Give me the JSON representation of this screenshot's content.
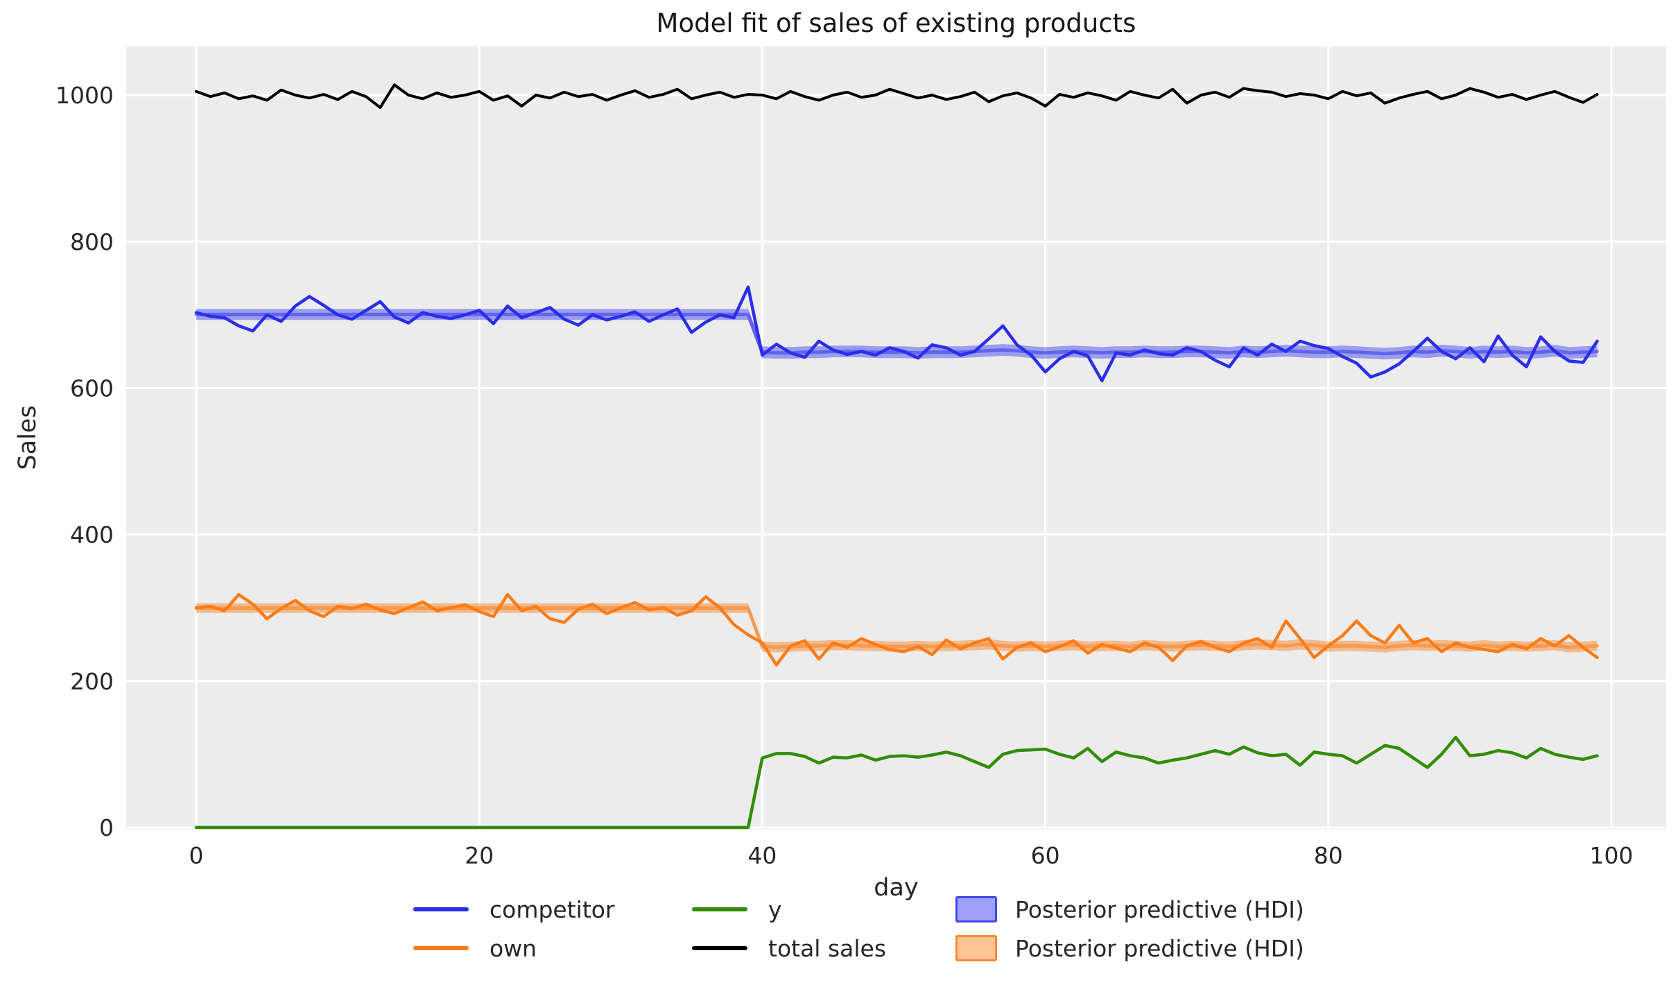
{
  "figure": {
    "title": "Model fit of sales of existing products",
    "xlabel": "day",
    "ylabel": "Sales"
  },
  "colors": {
    "background": "#ffffff",
    "plot_background": "#ececec",
    "grid": "#ffffff",
    "text": "#262626",
    "competitor": "#2a2eec",
    "own": "#fa7c17",
    "y": "#328c06",
    "total_sales": "#000000"
  },
  "legend": {
    "position": "bottom",
    "items": [
      {
        "label": "competitor",
        "swatch": "line",
        "color": "#2a2eec"
      },
      {
        "label": "own",
        "swatch": "line",
        "color": "#fa7c17"
      },
      {
        "label": "y",
        "swatch": "line",
        "color": "#328c06"
      },
      {
        "label": "total sales",
        "swatch": "line",
        "color": "#000000"
      },
      {
        "label": "Posterior predictive (HDI)",
        "swatch": "patch",
        "color": "#2a2eec"
      },
      {
        "label": "Posterior predictive (HDI)",
        "swatch": "patch",
        "color": "#fa7c17"
      }
    ]
  },
  "chart_data": {
    "type": "line",
    "title": "Model fit of sales of existing products",
    "xlabel": "day",
    "ylabel": "Sales",
    "grid": true,
    "legend_position": "bottom",
    "xlim": [
      -4.95,
      103.87
    ],
    "ylim": [
      -2.8,
      1066.4
    ],
    "xticks": [
      0,
      20,
      40,
      60,
      80,
      100
    ],
    "yticks": [
      0,
      200,
      400,
      600,
      800,
      1000
    ],
    "x": [
      0,
      1,
      2,
      3,
      4,
      5,
      6,
      7,
      8,
      9,
      10,
      11,
      12,
      13,
      14,
      15,
      16,
      17,
      18,
      19,
      20,
      21,
      22,
      23,
      24,
      25,
      26,
      27,
      28,
      29,
      30,
      31,
      32,
      33,
      34,
      35,
      36,
      37,
      38,
      39,
      40,
      41,
      42,
      43,
      44,
      45,
      46,
      47,
      48,
      49,
      50,
      51,
      52,
      53,
      54,
      55,
      56,
      57,
      58,
      59,
      60,
      61,
      62,
      63,
      64,
      65,
      66,
      67,
      68,
      69,
      70,
      71,
      72,
      73,
      74,
      75,
      76,
      77,
      78,
      79,
      80,
      81,
      82,
      83,
      84,
      85,
      86,
      87,
      88,
      89,
      90,
      91,
      92,
      93,
      94,
      95,
      96,
      97,
      98,
      99
    ],
    "series": [
      {
        "name": "competitor",
        "color": "#2a2eec",
        "values": [
          703,
          698,
          696,
          685,
          678,
          700,
          691,
          712,
          725,
          713,
          700,
          694,
          706,
          718,
          697,
          689,
          703,
          698,
          695,
          700,
          706,
          688,
          712,
          696,
          703,
          710,
          694,
          686,
          700,
          693,
          698,
          704,
          691,
          700,
          708,
          676,
          690,
          700,
          696,
          738,
          645,
          660,
          648,
          642,
          664,
          652,
          646,
          650,
          645,
          655,
          650,
          641,
          659,
          655,
          645,
          650,
          667,
          685,
          659,
          645,
          622,
          640,
          650,
          644,
          610,
          648,
          645,
          652,
          647,
          645,
          655,
          650,
          638,
          629,
          655,
          645,
          660,
          650,
          664,
          658,
          654,
          643,
          634,
          615,
          622,
          633,
          650,
          668,
          650,
          640,
          655,
          636,
          671,
          645,
          629,
          670,
          650,
          637,
          635,
          664
        ]
      },
      {
        "name": "own",
        "color": "#fa7c17",
        "values": [
          300,
          302,
          296,
          318,
          305,
          285,
          299,
          310,
          296,
          288,
          302,
          299,
          305,
          297,
          292,
          300,
          308,
          296,
          300,
          304,
          295,
          288,
          318,
          296,
          302,
          285,
          280,
          298,
          305,
          292,
          300,
          307,
          297,
          300,
          290,
          296,
          315,
          300,
          277,
          263,
          252,
          222,
          248,
          255,
          230,
          252,
          246,
          258,
          250,
          243,
          240,
          247,
          236,
          256,
          244,
          252,
          258,
          230,
          246,
          252,
          240,
          247,
          255,
          238,
          250,
          245,
          240,
          252,
          246,
          228,
          248,
          254,
          246,
          240,
          252,
          258,
          246,
          282,
          258,
          232,
          248,
          262,
          282,
          262,
          252,
          276,
          252,
          258,
          240,
          252,
          246,
          243,
          240,
          250,
          244,
          258,
          248,
          262,
          246,
          232
        ]
      },
      {
        "name": "y",
        "color": "#328c06",
        "values": [
          0,
          0,
          0,
          0,
          0,
          0,
          0,
          0,
          0,
          0,
          0,
          0,
          0,
          0,
          0,
          0,
          0,
          0,
          0,
          0,
          0,
          0,
          0,
          0,
          0,
          0,
          0,
          0,
          0,
          0,
          0,
          0,
          0,
          0,
          0,
          0,
          0,
          0,
          0,
          0,
          95,
          101,
          101,
          97,
          88,
          96,
          95,
          99,
          92,
          97,
          98,
          96,
          99,
          103,
          98,
          90,
          82,
          100,
          105,
          106,
          107,
          100,
          95,
          108,
          90,
          103,
          98,
          95,
          88,
          92,
          95,
          100,
          105,
          100,
          110,
          102,
          98,
          100,
          85,
          103,
          100,
          98,
          88,
          100,
          112,
          108,
          95,
          82,
          100,
          123,
          98,
          100,
          105,
          102,
          95,
          108,
          100,
          96,
          93,
          98
        ]
      },
      {
        "name": "total sales",
        "color": "#000000",
        "values": [
          1005,
          998,
          1003,
          995,
          999,
          993,
          1007,
          1000,
          996,
          1001,
          994,
          1005,
          998,
          983,
          1014,
          1000,
          995,
          1003,
          997,
          1000,
          1005,
          993,
          999,
          985,
          1000,
          996,
          1004,
          998,
          1001,
          993,
          1000,
          1006,
          997,
          1001,
          1008,
          995,
          1000,
          1004,
          997,
          1001,
          1000,
          995,
          1005,
          998,
          993,
          1000,
          1004,
          997,
          1000,
          1008,
          1002,
          996,
          1000,
          994,
          998,
          1004,
          991,
          999,
          1003,
          996,
          985,
          1001,
          997,
          1003,
          999,
          993,
          1005,
          1000,
          996,
          1008,
          989,
          1000,
          1004,
          997,
          1009,
          1006,
          1004,
          998,
          1002,
          1000,
          995,
          1005,
          999,
          1003,
          989,
          996,
          1001,
          1005,
          995,
          1000,
          1009,
          1004,
          997,
          1001,
          994,
          1000,
          1005,
          997,
          990,
          1001
        ]
      }
    ],
    "bands": [
      {
        "name": "Posterior predictive (HDI)",
        "color": "#2a2eec",
        "opacity": 0.42,
        "lower": [
          693,
          693,
          693,
          693,
          693,
          693,
          693,
          693,
          693,
          693,
          693,
          693,
          693,
          693,
          693,
          693,
          693,
          693,
          693,
          693,
          693,
          693,
          693,
          693,
          693,
          693,
          693,
          693,
          693,
          693,
          693,
          693,
          693,
          693,
          693,
          693,
          693,
          693,
          693,
          693,
          641,
          640,
          640,
          641,
          641,
          642,
          642,
          642,
          641,
          641,
          641,
          640,
          641,
          641,
          641,
          642,
          643,
          644,
          643,
          641,
          640,
          641,
          642,
          641,
          640,
          641,
          641,
          642,
          641,
          641,
          642,
          642,
          641,
          640,
          642,
          641,
          642,
          643,
          642,
          641,
          641,
          642,
          641,
          640,
          639,
          640,
          642,
          641,
          643,
          642,
          640,
          642,
          641,
          642,
          640,
          641,
          643,
          640,
          641,
          642
        ],
        "upper": [
          708,
          708,
          708,
          708,
          708,
          708,
          708,
          708,
          708,
          708,
          708,
          708,
          708,
          708,
          708,
          708,
          708,
          708,
          708,
          708,
          708,
          708,
          708,
          708,
          708,
          708,
          708,
          708,
          708,
          708,
          708,
          708,
          708,
          708,
          708,
          708,
          708,
          708,
          708,
          708,
          657,
          656,
          656,
          657,
          657,
          658,
          658,
          658,
          657,
          657,
          657,
          656,
          657,
          657,
          657,
          658,
          659,
          660,
          659,
          657,
          656,
          657,
          658,
          657,
          656,
          657,
          657,
          658,
          657,
          657,
          658,
          658,
          657,
          656,
          658,
          657,
          658,
          659,
          658,
          657,
          657,
          658,
          657,
          656,
          655,
          656,
          658,
          657,
          659,
          658,
          656,
          658,
          657,
          658,
          656,
          657,
          659,
          656,
          657,
          658
        ]
      },
      {
        "name": "Posterior predictive (HDI)",
        "color": "#fa7c17",
        "opacity": 0.45,
        "lower": [
          293,
          293,
          293,
          293,
          293,
          293,
          293,
          293,
          293,
          293,
          293,
          293,
          293,
          293,
          293,
          293,
          293,
          293,
          293,
          293,
          293,
          293,
          293,
          293,
          293,
          293,
          293,
          293,
          293,
          293,
          293,
          293,
          293,
          293,
          293,
          293,
          293,
          293,
          293,
          293,
          240,
          239,
          240,
          241,
          241,
          242,
          242,
          241,
          241,
          240,
          240,
          241,
          240,
          241,
          241,
          242,
          243,
          241,
          240,
          241,
          240,
          241,
          242,
          240,
          241,
          241,
          240,
          242,
          241,
          240,
          241,
          242,
          241,
          240,
          242,
          243,
          242,
          241,
          243,
          242,
          240,
          241,
          241,
          240,
          239,
          241,
          242,
          241,
          242,
          241,
          240,
          242,
          240,
          241,
          240,
          241,
          242,
          239,
          240,
          241
        ],
        "upper": [
          306,
          306,
          306,
          306,
          306,
          306,
          306,
          306,
          306,
          306,
          306,
          306,
          306,
          306,
          306,
          306,
          306,
          306,
          306,
          306,
          306,
          306,
          306,
          306,
          306,
          306,
          306,
          306,
          306,
          306,
          306,
          306,
          306,
          306,
          306,
          306,
          306,
          306,
          306,
          306,
          254,
          253,
          254,
          255,
          255,
          256,
          256,
          255,
          255,
          254,
          254,
          255,
          254,
          255,
          255,
          256,
          257,
          255,
          254,
          255,
          254,
          255,
          256,
          254,
          255,
          255,
          254,
          256,
          255,
          254,
          255,
          256,
          255,
          254,
          256,
          257,
          256,
          255,
          257,
          256,
          254,
          255,
          255,
          254,
          253,
          255,
          256,
          255,
          256,
          255,
          254,
          256,
          254,
          255,
          254,
          255,
          256,
          253,
          254,
          255
        ]
      }
    ]
  }
}
